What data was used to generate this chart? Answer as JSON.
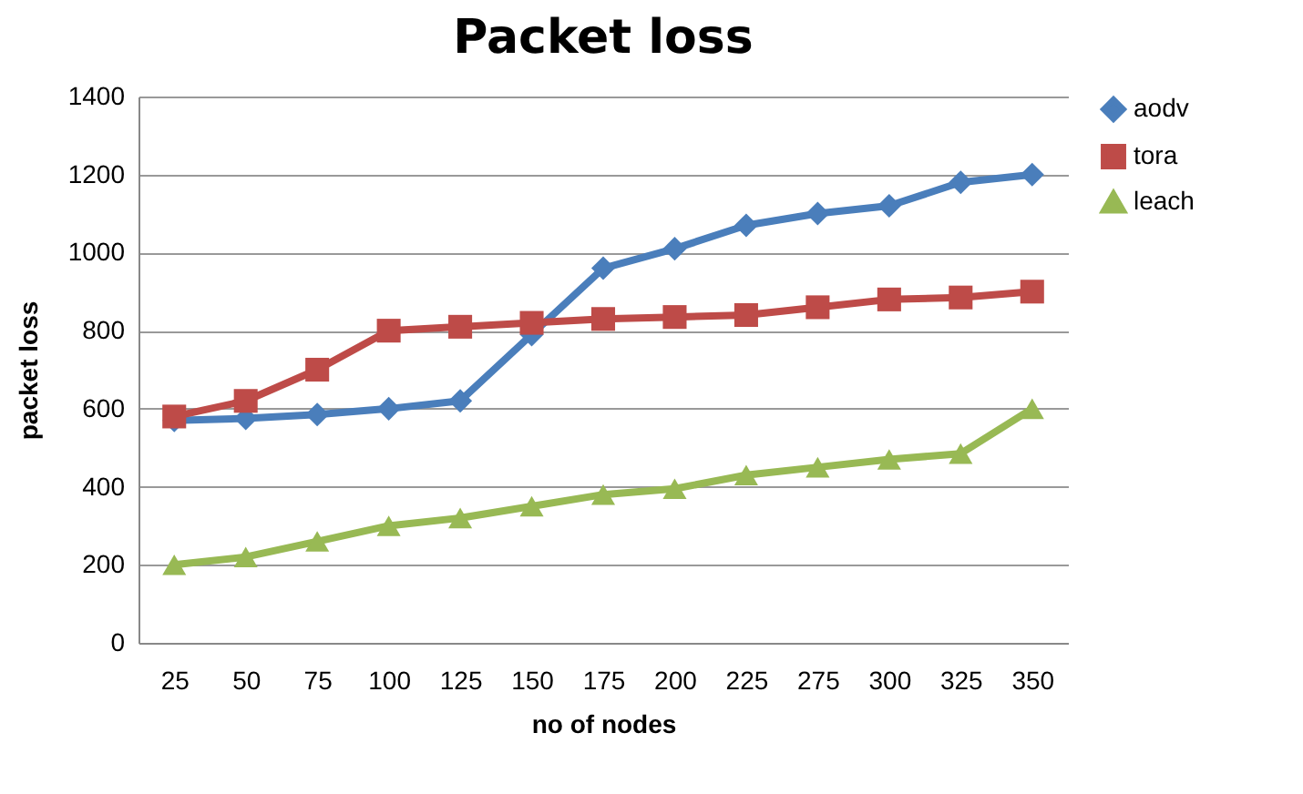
{
  "chart_data": {
    "type": "line",
    "title": "Packet loss",
    "xlabel": "no of nodes",
    "ylabel": "packet loss",
    "categories": [
      "25",
      "50",
      "75",
      "100",
      "125",
      "150",
      "175",
      "200",
      "225",
      "275",
      "300",
      "325",
      "350"
    ],
    "series": [
      {
        "name": "aodv",
        "color": "#4a7ebb",
        "marker": "diamond",
        "values": [
          570,
          575,
          585,
          600,
          620,
          790,
          960,
          1010,
          1070,
          1100,
          1120,
          1180,
          1200
        ]
      },
      {
        "name": "tora",
        "color": "#be4b48",
        "marker": "square",
        "values": [
          580,
          620,
          700,
          800,
          810,
          820,
          830,
          835,
          840,
          860,
          880,
          885,
          900
        ]
      },
      {
        "name": "leach",
        "color": "#98b954",
        "marker": "triangle",
        "values": [
          200,
          220,
          260,
          300,
          320,
          350,
          380,
          395,
          430,
          450,
          470,
          485,
          600
        ]
      }
    ],
    "ylim": [
      0,
      1400
    ],
    "yticks": [
      0,
      200,
      400,
      600,
      800,
      1000,
      1200,
      1400
    ],
    "grid": "y",
    "legend": "right",
    "line_style": "solid"
  }
}
